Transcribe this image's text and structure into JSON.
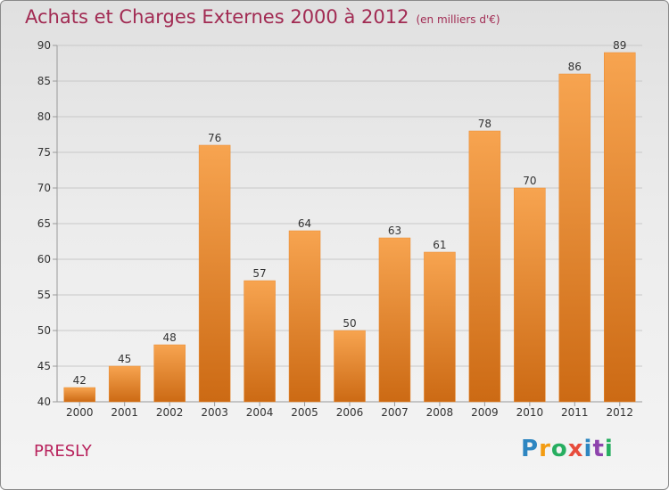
{
  "header": {
    "title": "Achats et Charges Externes 2000 à 2012",
    "unit": "(en milliers d'€)"
  },
  "footer": {
    "commune": "PRESLY",
    "logo_letters": [
      "P",
      "r",
      "o",
      "x",
      "i",
      "t",
      "i"
    ],
    "logo_colors": [
      "#2e86c1",
      "#f39c12",
      "#27ae60",
      "#e74c3c",
      "#2e86c1",
      "#8e44ad",
      "#27ae60"
    ]
  },
  "colors": {
    "bar_top": "#f7a450",
    "bar_bottom": "#cc6a14",
    "bar_edge": "#e98a30",
    "grid": "#c8c8c8",
    "axis": "#999999",
    "title": "#a12a52",
    "text": "#333333"
  },
  "chart_data": {
    "type": "bar",
    "title": "Achats et Charges Externes 2000 à 2012",
    "subtitle": "(en milliers d'€)",
    "xlabel": "",
    "ylabel": "",
    "categories": [
      "2000",
      "2001",
      "2002",
      "2003",
      "2004",
      "2005",
      "2006",
      "2007",
      "2008",
      "2009",
      "2010",
      "2011",
      "2012"
    ],
    "values": [
      42,
      45,
      48,
      76,
      57,
      64,
      50,
      63,
      61,
      78,
      70,
      86,
      89
    ],
    "ylim": [
      40,
      90
    ],
    "yticks": [
      40,
      45,
      50,
      55,
      60,
      65,
      70,
      75,
      80,
      85,
      90
    ],
    "grid": true,
    "data_labels": true
  }
}
